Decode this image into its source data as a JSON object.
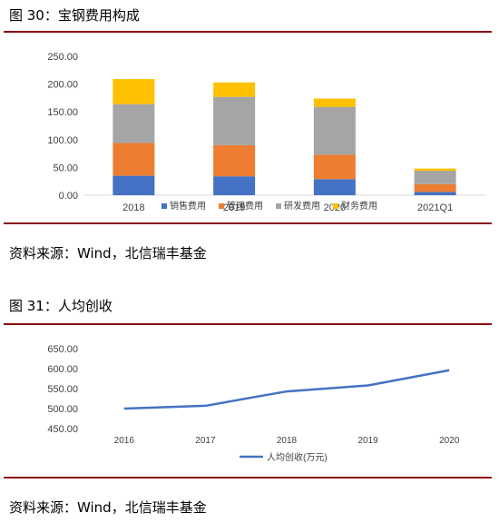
{
  "figure1": {
    "title": "图 30：宝钢费用构成",
    "source": "资料来源：Wind，北信瑞丰基金",
    "chart_data": {
      "type": "bar",
      "stacked": true,
      "categories": [
        "2018",
        "2019",
        "2020",
        "2021Q1"
      ],
      "ylim": [
        0,
        250
      ],
      "yticks": [
        "0.00",
        "50.00",
        "100.00",
        "150.00",
        "200.00",
        "250.00"
      ],
      "legend_position": "bottom",
      "series": [
        {
          "name": "销售费用",
          "color": "#4472C4",
          "values": [
            35,
            34,
            29,
            6
          ]
        },
        {
          "name": "管理费用",
          "color": "#ED7D31",
          "values": [
            59,
            56,
            44,
            14
          ]
        },
        {
          "name": "研发费用",
          "color": "#A5A5A5",
          "values": [
            70,
            87,
            86,
            24
          ]
        },
        {
          "name": "财务费用",
          "color": "#FFC000",
          "values": [
            45,
            26,
            15,
            4
          ]
        }
      ]
    }
  },
  "figure2": {
    "title": "图 31：人均创收",
    "source": "资料来源：Wind，北信瑞丰基金",
    "chart_data": {
      "type": "line",
      "categories": [
        "2016",
        "2017",
        "2018",
        "2019",
        "2020"
      ],
      "ylim": [
        450,
        650
      ],
      "yticks": [
        "450.00",
        "500.00",
        "550.00",
        "600.00",
        "650.00"
      ],
      "legend_position": "bottom",
      "series": [
        {
          "name": "人均创收(万元)",
          "color": "#4472C4",
          "values": [
            500,
            507,
            543,
            558,
            596
          ]
        }
      ]
    }
  }
}
